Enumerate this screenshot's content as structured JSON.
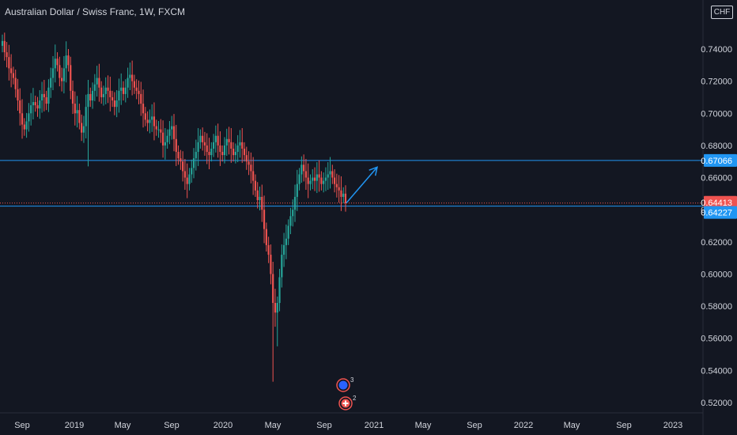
{
  "header": {
    "title": "Australian Dollar / Swiss Franc, 1W, FXCM",
    "currency_label": "CHF"
  },
  "colors": {
    "background": "#131722",
    "up": "#26a69a",
    "down": "#ef5350",
    "line": "#2196f3",
    "axis_text": "#d1d4dc",
    "price_line": "#ef5350"
  },
  "chart_data": {
    "type": "candlestick",
    "title": "Australian Dollar / Swiss Franc, 1W, FXCM",
    "xlabel": "",
    "ylabel": "",
    "ylim": [
      0.51,
      0.755
    ],
    "x_ticks": [
      "Sep",
      "2019",
      "May",
      "Sep",
      "2020",
      "May",
      "Sep",
      "2021",
      "May",
      "Sep",
      "2022",
      "May",
      "Sep",
      "2023"
    ],
    "y_ticks": [
      "0.74000",
      "0.72000",
      "0.70000",
      "0.68000",
      "0.66000",
      "0.64000",
      "0.62000",
      "0.60000",
      "0.58000",
      "0.56000",
      "0.54000",
      "0.52000"
    ],
    "y_tick_values": [
      0.74,
      0.72,
      0.7,
      0.68,
      0.66,
      0.64,
      0.62,
      0.6,
      0.58,
      0.56,
      0.54,
      0.52
    ],
    "price_labels": [
      {
        "text": "0.67066",
        "value": 0.67066
      },
      {
        "text": "0.64413",
        "value": 0.64413
      },
      {
        "text": "0.64227",
        "value": 0.64227
      }
    ],
    "horizontal_lines": [
      0.67066,
      0.64227
    ],
    "current_price": 0.64413,
    "arrow": {
      "from": [
        0.6442,
        0
      ],
      "to": [
        0.666,
        8
      ]
    },
    "events": [
      {
        "label": "3"
      },
      {
        "label": "2"
      }
    ],
    "closes": [
      0.745,
      0.738,
      0.735,
      0.728,
      0.725,
      0.722,
      0.715,
      0.708,
      0.7,
      0.693,
      0.69,
      0.695,
      0.7,
      0.705,
      0.707,
      0.705,
      0.703,
      0.708,
      0.712,
      0.71,
      0.706,
      0.716,
      0.722,
      0.728,
      0.734,
      0.73,
      0.722,
      0.72,
      0.728,
      0.736,
      0.73,
      0.714,
      0.706,
      0.7,
      0.702,
      0.694,
      0.688,
      0.692,
      0.704,
      0.712,
      0.708,
      0.714,
      0.718,
      0.722,
      0.716,
      0.71,
      0.712,
      0.716,
      0.714,
      0.71,
      0.708,
      0.704,
      0.708,
      0.714,
      0.716,
      0.712,
      0.716,
      0.722,
      0.724,
      0.72,
      0.716,
      0.714,
      0.712,
      0.706,
      0.7,
      0.696,
      0.694,
      0.696,
      0.698,
      0.692,
      0.69,
      0.69,
      0.688,
      0.68,
      0.682,
      0.686,
      0.69,
      0.692,
      0.684,
      0.676,
      0.672,
      0.67,
      0.664,
      0.66,
      0.656,
      0.662,
      0.666,
      0.672,
      0.676,
      0.682,
      0.686,
      0.682,
      0.68,
      0.676,
      0.674,
      0.678,
      0.682,
      0.686,
      0.68,
      0.676,
      0.674,
      0.68,
      0.684,
      0.682,
      0.678,
      0.674,
      0.676,
      0.68,
      0.682,
      0.678,
      0.674,
      0.67,
      0.668,
      0.664,
      0.658,
      0.652,
      0.646,
      0.648,
      0.64,
      0.628,
      0.618,
      0.612,
      0.6,
      0.582,
      0.576,
      0.582,
      0.598,
      0.612,
      0.618,
      0.622,
      0.63,
      0.636,
      0.64,
      0.648,
      0.656,
      0.662,
      0.668,
      0.664,
      0.66,
      0.656,
      0.658,
      0.66,
      0.658,
      0.662,
      0.66,
      0.656,
      0.658,
      0.66,
      0.662,
      0.664,
      0.66,
      0.656,
      0.654,
      0.652,
      0.648,
      0.65,
      0.644
    ]
  }
}
